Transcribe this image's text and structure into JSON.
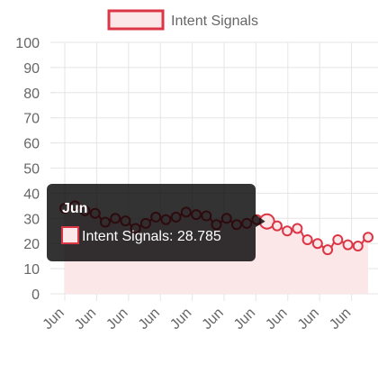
{
  "chart_data": {
    "type": "line",
    "legend": {
      "position": "top"
    },
    "series": [
      {
        "name": "Intent Signals",
        "color": "#dc3545",
        "fill_color": "#fbe6e8",
        "values": [
          34,
          35,
          33,
          32,
          28.5,
          30,
          29,
          26,
          28,
          30.5,
          29.5,
          30.5,
          32.5,
          31.5,
          31,
          27.5,
          30,
          27.5,
          28,
          29.5,
          28.785,
          27,
          25,
          26,
          21.5,
          20,
          17.5,
          21.5,
          19.5,
          19,
          22.5
        ]
      }
    ],
    "x_tick_labels": [
      "Jun",
      "Jun",
      "Jun",
      "Jun",
      "Jun",
      "Jun",
      "Jun",
      "Jun",
      "Jun",
      "Jun"
    ],
    "y_ticks": [
      "0",
      "10",
      "20",
      "30",
      "40",
      "50",
      "60",
      "70",
      "80",
      "90",
      "100"
    ],
    "ylim": [
      0,
      100
    ],
    "grid": true,
    "tooltip": {
      "title": "Jun",
      "label": "Intent Signals: 28.785",
      "point_index": 20
    }
  }
}
